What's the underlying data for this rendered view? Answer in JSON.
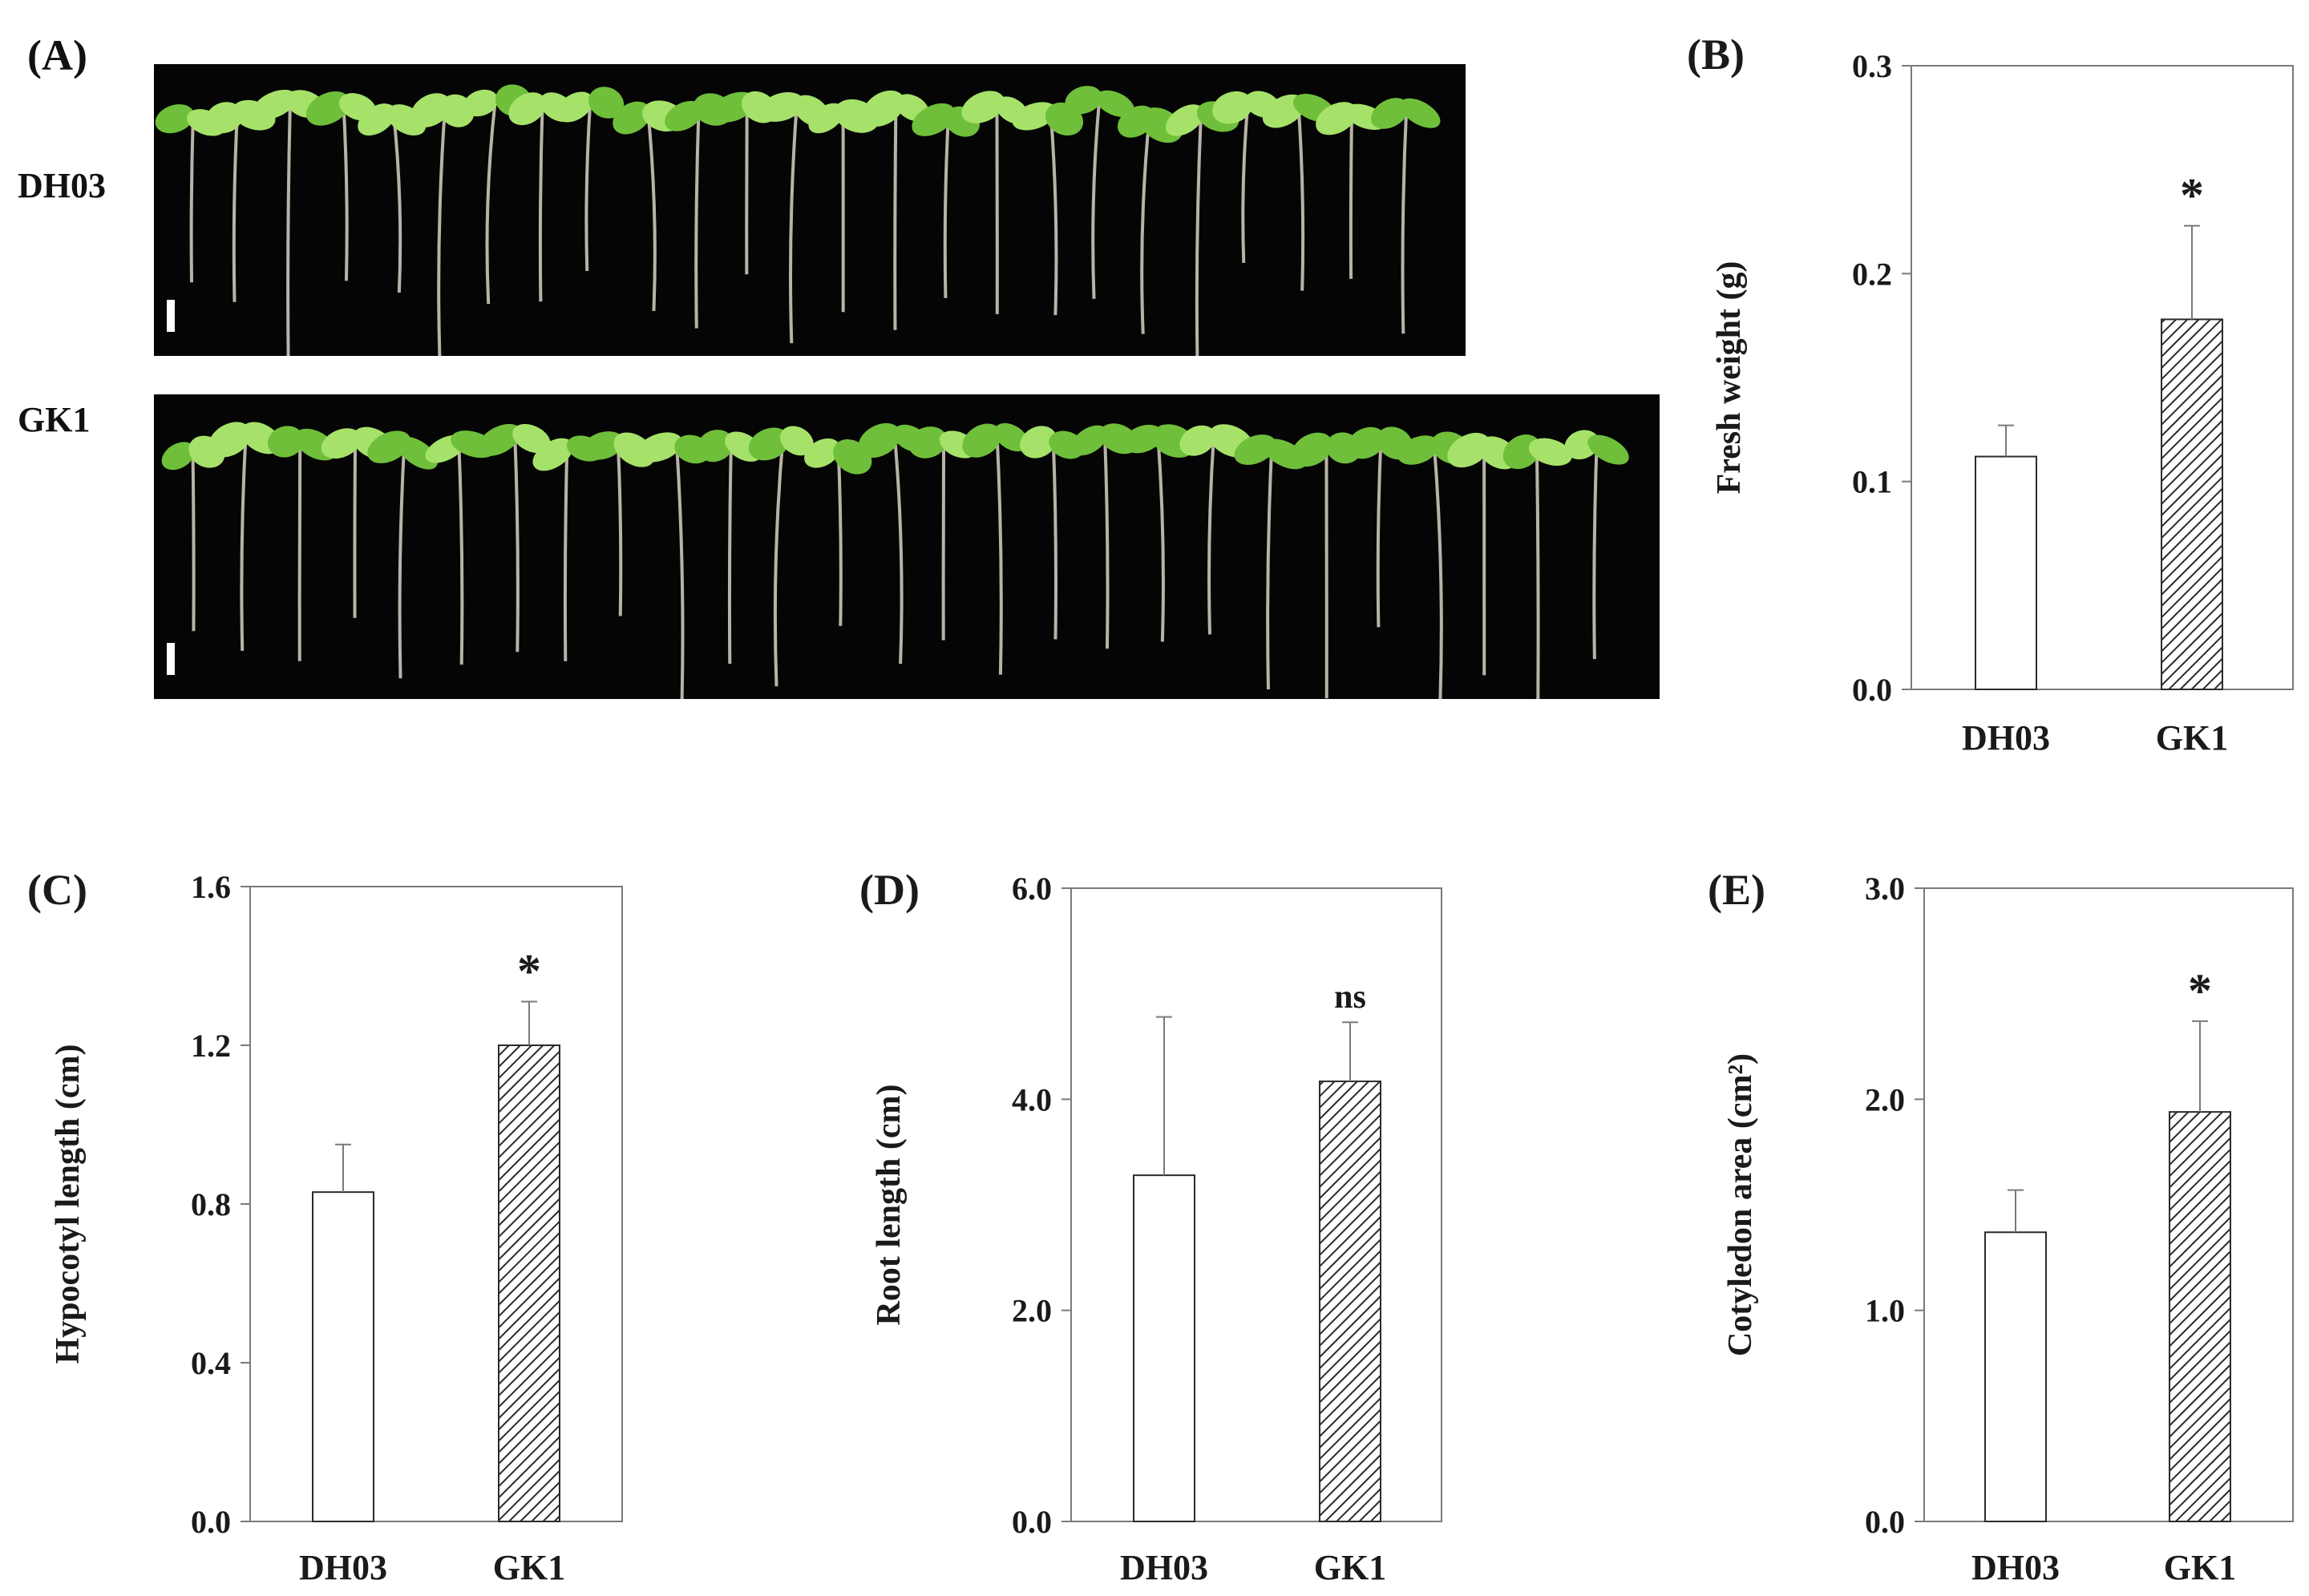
{
  "figure": {
    "panel_A": {
      "label": "(A)",
      "rows": [
        {
          "label": "DH03",
          "seedling_count": 25
        },
        {
          "label": "GK1",
          "seedling_count": 27
        }
      ]
    },
    "colors": {
      "photo_background": "#050505",
      "leaf": "#6fbf3a",
      "leaf_highlight": "#a6e26a",
      "stem": "#d9d2c4",
      "bar_fill_open": "#ffffff",
      "bar_hatch": "#2b2b2b",
      "axis": "#7a7a7a"
    }
  },
  "chart_data": [
    {
      "panel": "(B)",
      "type": "bar",
      "categories": [
        "DH03",
        "GK1"
      ],
      "values": [
        0.112,
        0.178
      ],
      "errors": [
        0.015,
        0.045
      ],
      "significance": [
        null,
        "*"
      ],
      "ylabel": "Fresh weight (g)",
      "ylim": [
        0,
        0.3
      ],
      "yticks": [
        0.0,
        0.1,
        0.2,
        0.3
      ],
      "ytick_labels": [
        "0.0",
        "0.1",
        "0.2",
        "0.3"
      ],
      "bar_styles": [
        "open",
        "hatched"
      ]
    },
    {
      "panel": "(C)",
      "type": "bar",
      "categories": [
        "DH03",
        "GK1"
      ],
      "values": [
        0.83,
        1.2
      ],
      "errors": [
        0.12,
        0.11
      ],
      "significance": [
        null,
        "*"
      ],
      "ylabel": "Hypocotyl length (cm)",
      "ylim": [
        0,
        1.6
      ],
      "yticks": [
        0.0,
        0.4,
        0.8,
        1.2,
        1.6
      ],
      "ytick_labels": [
        "0.0",
        "0.4",
        "0.8",
        "1.2",
        "1.6"
      ],
      "bar_styles": [
        "open",
        "hatched"
      ]
    },
    {
      "panel": "(D)",
      "type": "bar",
      "categories": [
        "DH03",
        "GK1"
      ],
      "values": [
        3.28,
        4.17
      ],
      "errors": [
        1.5,
        0.56
      ],
      "significance": [
        null,
        "ns"
      ],
      "ylabel": "Root length (cm)",
      "ylim": [
        0,
        6.0
      ],
      "yticks": [
        0.0,
        2.0,
        4.0,
        6.0
      ],
      "ytick_labels": [
        "0.0",
        "2.0",
        "4.0",
        "6.0"
      ],
      "bar_styles": [
        "open",
        "hatched"
      ]
    },
    {
      "panel": "(E)",
      "type": "bar",
      "categories": [
        "DH03",
        "GK1"
      ],
      "values": [
        1.37,
        1.94
      ],
      "errors": [
        0.2,
        0.43
      ],
      "significance": [
        null,
        "*"
      ],
      "ylabel": "Cotyledon area (cm²)",
      "ylim": [
        0,
        3.0
      ],
      "yticks": [
        0.0,
        1.0,
        2.0,
        3.0
      ],
      "ytick_labels": [
        "0.0",
        "1.0",
        "2.0",
        "3.0"
      ],
      "bar_styles": [
        "open",
        "hatched"
      ]
    }
  ]
}
